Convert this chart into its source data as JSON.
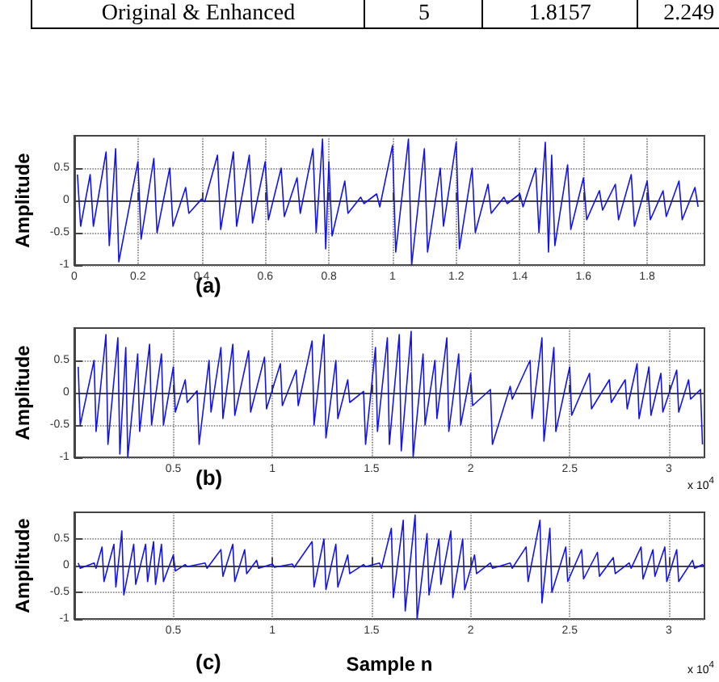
{
  "chart_data": [
    {
      "type": "other",
      "annotations": [
        "Original & Enhanced",
        "5",
        "1.8157",
        "2.249"
      ]
    },
    {
      "type": "line",
      "ylabel": "Amplitude",
      "annotations": [
        "(a)"
      ],
      "xlim": [
        0,
        1.98
      ],
      "xticks": [
        0,
        0.2,
        0.4,
        0.6,
        0.8,
        1,
        1.2,
        1.4,
        1.6,
        1.8
      ],
      "ylim": [
        -1,
        1
      ],
      "yticks": [
        -1,
        -0.5,
        0,
        0.5
      ],
      "grid": true,
      "x": [
        0.01,
        0.02,
        0.05,
        0.06,
        0.1,
        0.11,
        0.13,
        0.14,
        0.2,
        0.21,
        0.25,
        0.26,
        0.3,
        0.31,
        0.35,
        0.36,
        0.4,
        0.41,
        0.45,
        0.46,
        0.5,
        0.51,
        0.55,
        0.56,
        0.6,
        0.61,
        0.65,
        0.66,
        0.7,
        0.71,
        0.75,
        0.76,
        0.78,
        0.79,
        0.8,
        0.81,
        0.85,
        0.86,
        0.9,
        0.91,
        0.95,
        0.96,
        1.0,
        1.01,
        1.05,
        1.06,
        1.1,
        1.11,
        1.15,
        1.16,
        1.2,
        1.21,
        1.25,
        1.26,
        1.3,
        1.31,
        1.35,
        1.36,
        1.4,
        1.41,
        1.45,
        1.46,
        1.48,
        1.49,
        1.5,
        1.51,
        1.55,
        1.56,
        1.6,
        1.61,
        1.65,
        1.66,
        1.7,
        1.71,
        1.75,
        1.76,
        1.8,
        1.81,
        1.85,
        1.86,
        1.9,
        1.91,
        1.95,
        1.96
      ],
      "series": [
        {
          "color": "#1414e6",
          "values": [
            0.4,
            -0.4,
            0.4,
            -0.4,
            0.75,
            -0.7,
            0.8,
            -0.95,
            0.6,
            -0.6,
            0.65,
            -0.5,
            0.5,
            -0.4,
            0.2,
            -0.2,
            0.02,
            -0.02,
            0.7,
            -0.45,
            0.75,
            -0.4,
            0.7,
            -0.35,
            0.6,
            -0.3,
            0.5,
            -0.25,
            0.35,
            -0.2,
            0.8,
            -0.5,
            0.95,
            -0.75,
            0.6,
            -0.55,
            0.3,
            -0.2,
            0.05,
            -0.05,
            0.1,
            -0.1,
            0.85,
            -0.8,
            0.95,
            -1.0,
            0.8,
            -0.8,
            0.5,
            -0.4,
            0.9,
            -0.75,
            0.5,
            -0.5,
            0.25,
            -0.2,
            0.05,
            -0.05,
            0.1,
            -0.1,
            0.5,
            -0.5,
            0.9,
            -0.8,
            0.7,
            -0.7,
            0.55,
            -0.45,
            0.35,
            -0.3,
            0.15,
            -0.15,
            0.25,
            -0.3,
            0.4,
            -0.4,
            0.3,
            -0.3,
            0.15,
            -0.25,
            0.3,
            -0.3,
            0.2,
            -0.1
          ]
        }
      ]
    },
    {
      "type": "line",
      "ylabel": "Amplitude",
      "annotations": [
        "(b)",
        "x 10$^{4}$"
      ],
      "xlim": [
        0,
        3.18
      ],
      "xticks": [
        0.5,
        1,
        1.5,
        2,
        2.5,
        3
      ],
      "ylim": [
        -1,
        1
      ],
      "yticks": [
        -1,
        -0.5,
        0,
        0.5
      ],
      "grid": true,
      "x": [
        0.02,
        0.03,
        0.1,
        0.11,
        0.16,
        0.17,
        0.22,
        0.23,
        0.26,
        0.27,
        0.32,
        0.33,
        0.38,
        0.39,
        0.44,
        0.45,
        0.5,
        0.51,
        0.56,
        0.57,
        0.62,
        0.63,
        0.68,
        0.69,
        0.74,
        0.75,
        0.8,
        0.81,
        0.88,
        0.89,
        0.96,
        0.97,
        1.04,
        1.05,
        1.12,
        1.13,
        1.2,
        1.21,
        1.26,
        1.27,
        1.32,
        1.33,
        1.38,
        1.39,
        1.46,
        1.47,
        1.52,
        1.53,
        1.58,
        1.59,
        1.64,
        1.65,
        1.7,
        1.71,
        1.76,
        1.77,
        1.82,
        1.83,
        1.88,
        1.89,
        1.94,
        1.95,
        2.0,
        2.01,
        2.1,
        2.11,
        2.2,
        2.21,
        2.3,
        2.31,
        2.36,
        2.37,
        2.42,
        2.43,
        2.5,
        2.51,
        2.6,
        2.61,
        2.7,
        2.71,
        2.78,
        2.79,
        2.84,
        2.85,
        2.9,
        2.91,
        2.96,
        2.97,
        3.04,
        3.05,
        3.1,
        3.11,
        3.16,
        3.17
      ],
      "series": [
        {
          "color": "#1414e6",
          "values": [
            0.4,
            -0.5,
            0.5,
            -0.6,
            0.9,
            -0.8,
            0.85,
            -0.95,
            0.7,
            -1.0,
            0.6,
            -0.6,
            0.75,
            -0.5,
            0.6,
            -0.5,
            0.4,
            -0.3,
            0.2,
            -0.15,
            0.03,
            -0.8,
            0.5,
            -0.3,
            0.7,
            -0.4,
            0.75,
            -0.35,
            0.65,
            -0.3,
            0.55,
            -0.25,
            0.45,
            -0.2,
            0.35,
            -0.2,
            0.8,
            -0.5,
            0.9,
            -0.7,
            0.5,
            -0.4,
            0.2,
            -0.15,
            0.02,
            -0.8,
            0.7,
            -0.6,
            0.85,
            -0.8,
            0.9,
            -0.9,
            0.95,
            -1.0,
            0.6,
            -0.5,
            0.5,
            -0.4,
            0.85,
            -0.6,
            0.6,
            -0.5,
            0.3,
            -0.2,
            0.05,
            -0.8,
            0.1,
            -0.1,
            0.5,
            -0.4,
            0.85,
            -0.75,
            0.7,
            -0.6,
            0.4,
            -0.35,
            0.3,
            -0.25,
            0.2,
            -0.15,
            0.2,
            -0.25,
            0.45,
            -0.4,
            0.4,
            -0.35,
            0.3,
            -0.3,
            0.35,
            -0.3,
            0.2,
            -0.1,
            0.05,
            -0.8
          ]
        }
      ]
    },
    {
      "type": "line",
      "ylabel": "Amplitude",
      "xlabel": "Sample n",
      "annotations": [
        "(c)",
        "x 10$^{4}$"
      ],
      "xlim": [
        0,
        3.18
      ],
      "xticks": [
        0.5,
        1,
        1.5,
        2,
        2.5,
        3
      ],
      "ylim": [
        -1,
        1
      ],
      "yticks": [
        -1,
        -0.5,
        0,
        0.5
      ],
      "grid": true,
      "x": [
        0.02,
        0.03,
        0.1,
        0.11,
        0.14,
        0.15,
        0.2,
        0.21,
        0.24,
        0.25,
        0.3,
        0.31,
        0.36,
        0.37,
        0.4,
        0.41,
        0.44,
        0.45,
        0.5,
        0.51,
        0.56,
        0.57,
        0.66,
        0.67,
        0.74,
        0.75,
        0.8,
        0.81,
        0.86,
        0.87,
        0.92,
        0.93,
        1.0,
        1.01,
        1.1,
        1.11,
        1.2,
        1.21,
        1.26,
        1.27,
        1.32,
        1.33,
        1.38,
        1.39,
        1.46,
        1.47,
        1.54,
        1.55,
        1.6,
        1.61,
        1.66,
        1.67,
        1.72,
        1.73,
        1.78,
        1.79,
        1.84,
        1.85,
        1.9,
        1.91,
        1.96,
        1.97,
        2.02,
        2.03,
        2.1,
        2.11,
        2.2,
        2.21,
        2.28,
        2.29,
        2.35,
        2.36,
        2.4,
        2.41,
        2.48,
        2.49,
        2.56,
        2.57,
        2.64,
        2.65,
        2.72,
        2.73,
        2.8,
        2.81,
        2.86,
        2.87,
        2.92,
        2.93,
        2.98,
        2.99,
        3.04,
        3.05,
        3.12,
        3.13,
        3.17,
        3.18
      ],
      "series": [
        {
          "color": "#1414e6",
          "values": [
            0.05,
            -0.05,
            0.05,
            -0.05,
            0.35,
            -0.3,
            0.4,
            -0.4,
            0.65,
            -0.55,
            0.4,
            -0.35,
            0.4,
            -0.3,
            0.45,
            -0.35,
            0.4,
            -0.3,
            0.2,
            -0.1,
            0.02,
            -0.02,
            0.05,
            -0.05,
            0.3,
            -0.2,
            0.4,
            -0.3,
            0.3,
            -0.15,
            0.1,
            -0.05,
            0.03,
            -0.03,
            0.03,
            -0.03,
            0.45,
            -0.4,
            0.5,
            -0.45,
            0.4,
            -0.4,
            0.2,
            -0.15,
            0.02,
            -0.02,
            0.05,
            -0.05,
            0.7,
            -0.6,
            0.85,
            -0.85,
            0.95,
            -1.0,
            0.6,
            -0.55,
            0.5,
            -0.35,
            0.65,
            -0.6,
            0.5,
            -0.45,
            0.2,
            -0.15,
            0.05,
            -0.05,
            0.05,
            -0.05,
            0.35,
            -0.3,
            0.85,
            -0.7,
            0.7,
            -0.5,
            0.35,
            -0.3,
            0.3,
            -0.25,
            0.25,
            -0.2,
            0.15,
            -0.15,
            0.05,
            -0.05,
            0.35,
            -0.25,
            0.3,
            -0.2,
            0.35,
            -0.3,
            0.3,
            -0.3,
            0.1,
            -0.05,
            0.02,
            -0.02
          ]
        }
      ]
    }
  ]
}
